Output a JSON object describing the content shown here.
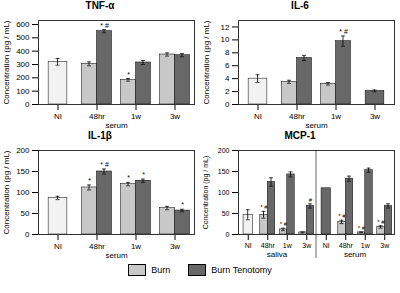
{
  "chart_data": [
    {
      "type": "bar",
      "title": "TNF-α",
      "xlabel": "serum",
      "ylabel": "Concentration (pg / mL)",
      "categories": [
        "NI",
        "48hr",
        "1w",
        "3w"
      ],
      "series": [
        {
          "name": "Burn",
          "color": "#c8c8c8",
          "colors": [
            "#f2f2f2",
            "#c8c8c8",
            "#c8c8c8",
            "#c8c8c8"
          ],
          "values": [
            320,
            305,
            185,
            375
          ],
          "errors": [
            25,
            15,
            10,
            12
          ],
          "annotations": [
            null,
            null,
            "*",
            null
          ]
        },
        {
          "name": "Burn Tenotomy",
          "color": "#686868",
          "values": [
            null,
            550,
            315,
            370
          ],
          "errors": [
            null,
            12,
            15,
            12
          ],
          "annotations": [
            null,
            "* #",
            null,
            null
          ]
        }
      ],
      "ylim": [
        0,
        630
      ],
      "yticks": [
        0,
        100,
        200,
        300,
        400,
        500,
        600
      ],
      "legend": "bottom"
    },
    {
      "type": "bar",
      "title": "IL-6",
      "xlabel": "serum",
      "ylabel": "Concentration (pg / mL)",
      "categories": [
        "NI",
        "48hr",
        "1w",
        "3w"
      ],
      "series": [
        {
          "name": "Burn",
          "color": "#c8c8c8",
          "colors": [
            "#f2f2f2",
            "#c8c8c8",
            "#c8c8c8",
            "#c8c8c8"
          ],
          "values": [
            4.0,
            3.5,
            3.2,
            null
          ],
          "errors": [
            0.6,
            0.25,
            0.2,
            null
          ]
        },
        {
          "name": "Burn Tenotomy",
          "color": "#686868",
          "values": [
            null,
            7.2,
            9.8,
            2.1
          ],
          "errors": [
            null,
            0.4,
            0.8,
            0.15
          ],
          "annotations": [
            null,
            null,
            "* #",
            null
          ]
        }
      ],
      "ylim": [
        0,
        13
      ],
      "yticks": [
        0,
        2,
        4,
        6,
        8,
        10,
        12
      ],
      "legend": "bottom"
    },
    {
      "type": "bar",
      "title": "IL-1β",
      "xlabel": "serum",
      "ylabel": "Concentration (pg / mL)",
      "categories": [
        "NI",
        "48hr",
        "1w",
        "3w"
      ],
      "series": [
        {
          "name": "Burn",
          "color": "#c8c8c8",
          "colors": [
            "#f2f2f2",
            "#c8c8c8",
            "#c8c8c8",
            "#c8c8c8"
          ],
          "values": [
            87,
            112,
            120,
            63
          ],
          "errors": [
            4,
            6,
            4,
            4
          ],
          "annotations": [
            null,
            "*",
            "*",
            null
          ]
        },
        {
          "name": "Burn Tenotomy",
          "color": "#686868",
          "values": [
            null,
            150,
            128,
            57
          ],
          "errors": [
            null,
            6,
            4,
            3
          ],
          "annotations": [
            null,
            "* #",
            "*",
            "*"
          ]
        }
      ],
      "ylim": [
        0,
        200
      ],
      "yticks": [
        0,
        50,
        100,
        150,
        200
      ],
      "legend": "bottom"
    },
    {
      "type": "bar",
      "title": "MCP-1",
      "ylabel": "Concentration (pg / mL)",
      "categories": [
        "NI",
        "48hr",
        "1w",
        "3w",
        "NI",
        "48hr",
        "1w",
        "3w"
      ],
      "sections": [
        "saliva",
        "saliva",
        "saliva",
        "saliva",
        "serum",
        "serum",
        "serum",
        "serum"
      ],
      "series": [
        {
          "name": "Burn",
          "color": "#c8c8c8",
          "colors": [
            "#f2f2f2",
            "#c8c8c8",
            "#c8c8c8",
            "#c8c8c8",
            "#c8c8c8",
            "#c8c8c8",
            "#c8c8c8",
            "#c8c8c8"
          ],
          "values": [
            47,
            47,
            12,
            5,
            null,
            30,
            5,
            18
          ],
          "errors": [
            12,
            8,
            3,
            1,
            null,
            4,
            1,
            3
          ],
          "annotations": [
            null,
            "* #",
            "* #",
            null,
            null,
            "* #",
            "* #",
            "* #"
          ]
        },
        {
          "name": "Burn Tenotomy",
          "color": "#686868",
          "values": [
            null,
            125,
            143,
            68,
            110,
            133,
            153,
            68
          ],
          "errors": [
            null,
            10,
            6,
            5,
            null,
            6,
            5,
            5
          ],
          "annotations": [
            null,
            null,
            null,
            "#",
            null,
            null,
            null,
            null
          ]
        }
      ],
      "ylim": [
        0,
        200
      ],
      "yticks": [
        0,
        50,
        100,
        150,
        200
      ],
      "legend": "bottom"
    }
  ]
}
